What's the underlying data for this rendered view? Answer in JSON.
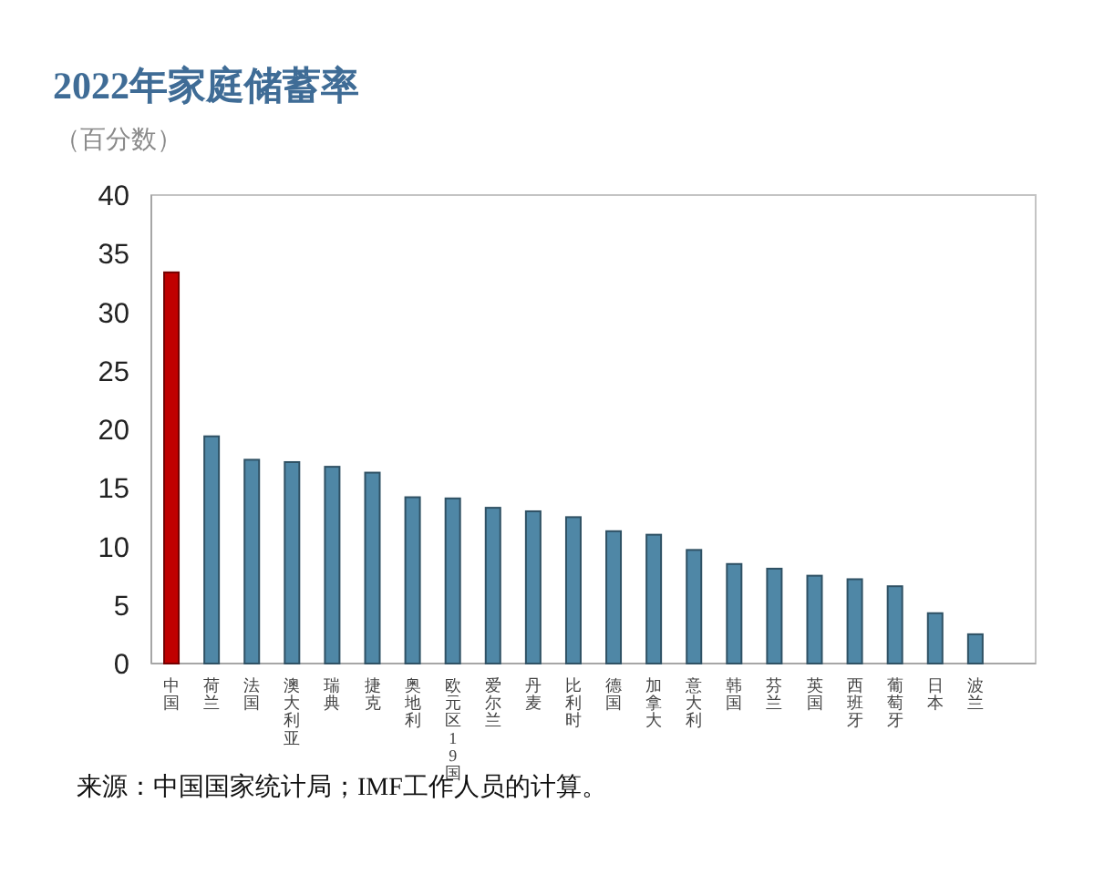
{
  "chart_data": {
    "type": "bar",
    "title": "2022年家庭储蓄率",
    "subtitle": "（百分数）",
    "categories": [
      "中国",
      "荷兰",
      "法国",
      "澳大利亚",
      "瑞典",
      "捷克",
      "奥地利",
      "欧元区19国",
      "爱尔兰",
      "丹麦",
      "比利时",
      "德国",
      "加拿大",
      "意大利",
      "韩国",
      "芬兰",
      "英国",
      "西班牙",
      "葡萄牙",
      "日本",
      "波兰"
    ],
    "values": [
      33.4,
      19.4,
      17.4,
      17.2,
      16.8,
      16.3,
      14.2,
      14.1,
      13.3,
      13.0,
      12.5,
      11.3,
      11.0,
      9.7,
      8.5,
      8.1,
      7.5,
      7.2,
      6.6,
      4.3,
      2.5
    ],
    "colors": [
      "#c00000",
      "#4f87a6",
      "#4f87a6",
      "#4f87a6",
      "#4f87a6",
      "#4f87a6",
      "#4f87a6",
      "#4f87a6",
      "#4f87a6",
      "#4f87a6",
      "#4f87a6",
      "#4f87a6",
      "#4f87a6",
      "#4f87a6",
      "#4f87a6",
      "#4f87a6",
      "#4f87a6",
      "#4f87a6",
      "#4f87a6",
      "#4f87a6",
      "#4f87a6"
    ],
    "ylim": [
      0,
      40
    ],
    "yticks": [
      0,
      5,
      10,
      15,
      20,
      25,
      30,
      35,
      40
    ],
    "annotations": [
      "来源：中国国家统计局；IMF工作人员的计算。"
    ]
  }
}
